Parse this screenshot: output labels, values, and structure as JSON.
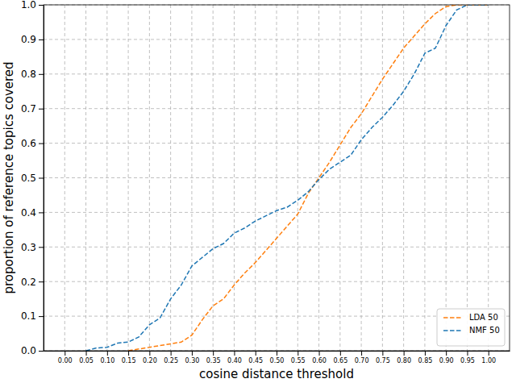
{
  "chart_data": {
    "type": "line",
    "x_label": "cosine distance threshold",
    "y_label": "proportion of reference topics covered",
    "x": [
      0,
      0.025,
      0.05,
      0.075,
      0.1,
      0.125,
      0.15,
      0.175,
      0.2,
      0.225,
      0.25,
      0.275,
      0.3,
      0.325,
      0.35,
      0.375,
      0.4,
      0.425,
      0.45,
      0.475,
      0.5,
      0.525,
      0.55,
      0.575,
      0.6,
      0.625,
      0.65,
      0.675,
      0.7,
      0.725,
      0.75,
      0.775,
      0.8,
      0.825,
      0.85,
      0.875,
      0.9,
      0.925,
      0.95,
      0.975,
      1.0
    ],
    "series": [
      {
        "name": "LDA 50",
        "color": "#ff7f0e",
        "line_style": "dashed",
        "values": [
          null,
          null,
          null,
          null,
          null,
          null,
          0,
          0.005,
          0.01,
          0.015,
          0.02,
          0.025,
          0.045,
          0.09,
          0.13,
          0.15,
          0.19,
          0.225,
          0.255,
          0.29,
          0.325,
          0.36,
          0.395,
          0.455,
          0.5,
          0.545,
          0.595,
          0.645,
          0.685,
          0.735,
          0.785,
          0.83,
          0.875,
          0.91,
          0.945,
          0.975,
          0.995,
          1,
          1,
          1,
          1
        ]
      },
      {
        "name": "NMF 50",
        "color": "#1f77b4",
        "line_style": "dashed",
        "values": [
          null,
          null,
          0,
          0.008,
          0.01,
          0.022,
          0.025,
          0.04,
          0.075,
          0.095,
          0.15,
          0.19,
          0.245,
          0.27,
          0.295,
          0.31,
          0.34,
          0.355,
          0.375,
          0.39,
          0.405,
          0.415,
          0.435,
          0.46,
          0.495,
          0.525,
          0.545,
          0.565,
          0.61,
          0.645,
          0.675,
          0.71,
          0.75,
          0.8,
          0.86,
          0.875,
          0.94,
          0.985,
          1,
          1,
          1
        ]
      }
    ],
    "xlim": [
      -0.05,
      1.05
    ],
    "ylim": [
      0,
      1
    ],
    "xticks": [
      {
        "value": 0,
        "label": "0.00"
      },
      0.05,
      {
        "value": 0.1,
        "label": "0.10"
      },
      0.15,
      {
        "value": 0.2,
        "label": "0.20"
      },
      0.25,
      {
        "value": 0.3,
        "label": "0.30"
      },
      0.35,
      {
        "value": 0.4,
        "label": "0.40"
      },
      0.45,
      {
        "value": 0.5,
        "label": "0.50"
      },
      0.55,
      {
        "value": 0.6,
        "label": "0.60"
      },
      0.65,
      {
        "value": 0.7,
        "label": "0.70"
      },
      0.75,
      {
        "value": 0.8,
        "label": "0.80"
      },
      0.85,
      {
        "value": 0.9,
        "label": "0.90"
      },
      0.95,
      {
        "value": 1,
        "label": "1.00"
      }
    ],
    "yticks": [
      {
        "value": 0,
        "label": "0.0"
      },
      0.1,
      0.2,
      0.3,
      0.4,
      0.5,
      0.6,
      0.7,
      0.8,
      0.9,
      {
        "value": 1,
        "label": "1.0"
      }
    ],
    "grid": true,
    "legend": "lower right"
  }
}
